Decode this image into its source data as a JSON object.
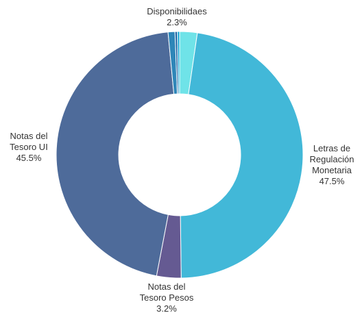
{
  "chart_data": {
    "type": "pie",
    "variant": "donut",
    "title": "",
    "slices": [
      {
        "name": "Disponibilidaes",
        "lines": [
          "Disponibilidaes"
        ],
        "pct_label": "2.3%",
        "value": 2.3,
        "color": "#6FE3E8"
      },
      {
        "name": "Letras de Regulación Monetaria",
        "lines": [
          "Letras de",
          "Regulación",
          "Monetaria"
        ],
        "pct_label": "47.5%",
        "value": 47.5,
        "color": "#42B8D8"
      },
      {
        "name": "Notas del Tesoro Pesos",
        "lines": [
          "Notas del",
          "Tesoro Pesos"
        ],
        "pct_label": "3.2%",
        "value": 3.2,
        "color": "#655A92"
      },
      {
        "name": "Notas del Tesoro UI",
        "lines": [
          "Notas del",
          "Tesoro UI"
        ],
        "pct_label": "45.5%",
        "value": 45.5,
        "color": "#4E6B9A"
      },
      {
        "name": "",
        "lines": [],
        "pct_label": "",
        "value": 0.9,
        "color": "#2E86B8"
      },
      {
        "name": "",
        "lines": [],
        "pct_label": "",
        "value": 0.3,
        "color": "#1B5FA0"
      },
      {
        "name": "",
        "lines": [],
        "pct_label": "",
        "value": 0.3,
        "color": "#19A9D6"
      }
    ]
  }
}
